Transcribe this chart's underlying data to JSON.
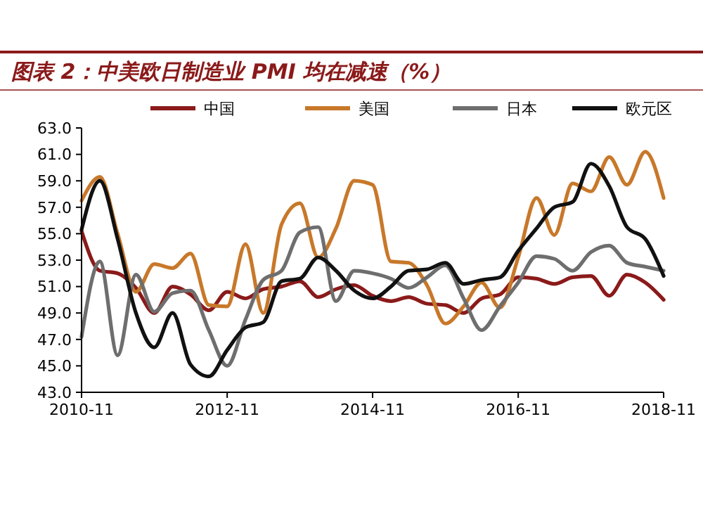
{
  "chart_data": {
    "type": "line",
    "title": "图表 2：中美欧日制造业 PMI 均在减速（%）",
    "x": [
      "2010-11",
      "2011-02",
      "2011-05",
      "2011-08",
      "2011-11",
      "2012-02",
      "2012-05",
      "2012-08",
      "2012-11",
      "2013-02",
      "2013-05",
      "2013-08",
      "2013-11",
      "2014-02",
      "2014-05",
      "2014-08",
      "2014-11",
      "2015-02",
      "2015-05",
      "2015-08",
      "2015-11",
      "2016-02",
      "2016-05",
      "2016-08",
      "2016-11",
      "2017-02",
      "2017-05",
      "2017-08",
      "2017-11",
      "2018-02",
      "2018-05",
      "2018-08",
      "2018-11"
    ],
    "series": [
      {
        "name": "中国",
        "color": "#8b1a1a",
        "values": [
          55.2,
          52.2,
          52.0,
          50.9,
          49.0,
          51.0,
          50.4,
          49.2,
          50.6,
          50.1,
          50.8,
          51.0,
          51.4,
          50.2,
          50.8,
          51.1,
          50.3,
          49.9,
          50.2,
          49.7,
          49.6,
          49.0,
          50.1,
          50.4,
          51.7,
          51.6,
          51.2,
          51.7,
          51.8,
          50.3,
          51.9,
          51.3,
          50.0
        ]
      },
      {
        "name": "美国",
        "color": "#c8782a",
        "values": [
          57.5,
          59.3,
          55.0,
          50.6,
          52.7,
          52.4,
          53.5,
          49.6,
          49.5,
          54.2,
          49.0,
          55.7,
          57.3,
          53.2,
          55.4,
          59.0,
          58.7,
          52.9,
          52.8,
          51.1,
          48.2,
          49.5,
          51.3,
          49.4,
          53.2,
          57.7,
          54.9,
          58.8,
          58.2,
          60.8,
          58.7,
          61.2,
          57.7
        ]
      },
      {
        "name": "日本",
        "color": "#6e6e6e",
        "values": [
          47.2,
          52.9,
          45.8,
          51.9,
          49.1,
          50.5,
          50.7,
          47.7,
          45.0,
          48.5,
          51.5,
          52.2,
          55.1,
          55.5,
          49.9,
          52.2,
          52.0,
          51.6,
          50.9,
          51.7,
          52.6,
          50.1,
          47.7,
          49.5,
          51.3,
          53.3,
          53.1,
          52.2,
          53.6,
          54.1,
          52.8,
          52.5,
          52.2
        ]
      },
      {
        "name": "欧元区",
        "color": "#111111",
        "values": [
          55.3,
          59.0,
          54.6,
          49.0,
          46.4,
          49.0,
          45.1,
          44.2,
          46.2,
          47.9,
          48.3,
          51.4,
          51.6,
          53.2,
          52.2,
          50.7,
          50.1,
          51.0,
          52.2,
          52.3,
          52.8,
          51.2,
          51.5,
          51.7,
          53.7,
          55.4,
          57.0,
          57.4,
          60.3,
          58.6,
          55.5,
          54.6,
          51.8
        ]
      }
    ],
    "xlim": [
      "2010-11",
      "2018-11"
    ],
    "xticks": [
      "2010-11",
      "2012-11",
      "2014-11",
      "2016-11",
      "2018-11"
    ],
    "ylim": [
      43,
      63
    ],
    "yticks": [
      {
        "value": 43,
        "label": "43.0"
      },
      {
        "value": 45,
        "label": "45.0"
      },
      {
        "value": 47,
        "label": "47.0"
      },
      {
        "value": 49,
        "label": "49.0"
      },
      {
        "value": 51,
        "label": "51.0"
      },
      {
        "value": 53,
        "label": "53.0"
      },
      {
        "value": 55,
        "label": "55.0"
      },
      {
        "value": 57,
        "label": "57.0"
      },
      {
        "value": 59,
        "label": "59.0"
      },
      {
        "value": 61,
        "label": "61.0"
      },
      {
        "value": 63,
        "label": "63.0"
      }
    ],
    "legend": "top",
    "line_style": "solid"
  }
}
